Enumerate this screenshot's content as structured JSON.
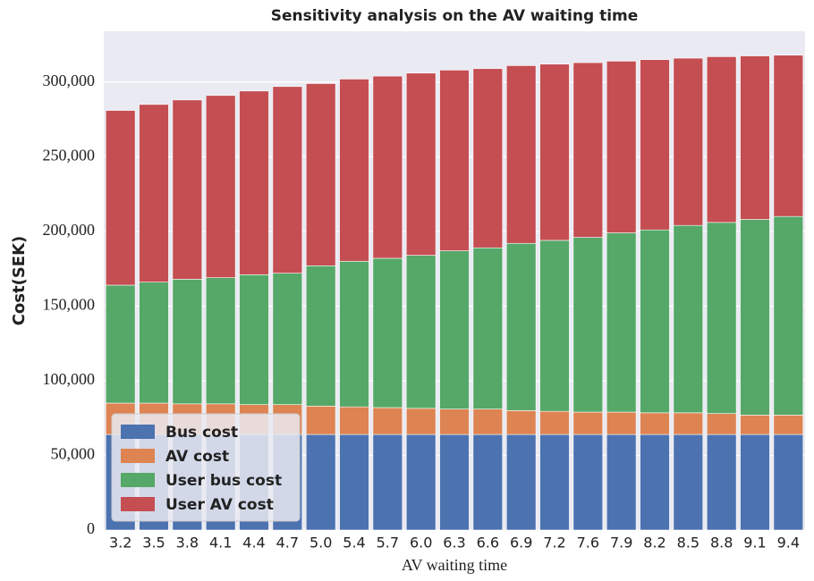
{
  "chart_data": {
    "type": "stacked_bar",
    "title": "Sensitivity analysis on the AV waiting time",
    "xlabel": "AV waiting time",
    "ylabel": "Cost(SEK)",
    "categories": [
      "3.2",
      "3.5",
      "3.8",
      "4.1",
      "4.4",
      "4.7",
      "5.0",
      "5.4",
      "5.7",
      "6.0",
      "6.3",
      "6.6",
      "6.9",
      "7.2",
      "7.6",
      "7.9",
      "8.2",
      "8.5",
      "8.8",
      "9.1",
      "9.4"
    ],
    "series": [
      {
        "name": "Bus cost",
        "color": "#4c72b0",
        "values": [
          64000,
          64000,
          64000,
          64000,
          64000,
          64000,
          64000,
          64000,
          64000,
          64000,
          64000,
          64000,
          64000,
          64000,
          64000,
          64000,
          64000,
          64000,
          64000,
          64000,
          64000
        ]
      },
      {
        "name": "AV cost",
        "color": "#dd8452",
        "values": [
          21000,
          21000,
          20500,
          20500,
          20000,
          20000,
          19000,
          18500,
          18000,
          17500,
          17000,
          17000,
          16000,
          15500,
          15000,
          15000,
          14500,
          14500,
          14000,
          13000,
          13000
        ]
      },
      {
        "name": "User bus cost",
        "color": "#55a868",
        "values": [
          79000,
          81000,
          83500,
          84500,
          87000,
          88000,
          94000,
          97500,
          100000,
          102500,
          106000,
          108000,
          112000,
          114500,
          117000,
          120000,
          122500,
          125500,
          128000,
          131000,
          133000
        ]
      },
      {
        "name": "User AV cost",
        "color": "#c44e52",
        "values": [
          117000,
          119000,
          120000,
          122000,
          123000,
          125000,
          122000,
          122000,
          122000,
          122000,
          121000,
          120000,
          119000,
          118000,
          117000,
          115000,
          114000,
          112000,
          111000,
          109500,
          108000
        ]
      }
    ],
    "ylim": [
      0,
      334000
    ],
    "yticks": [
      0,
      {
        "value": 50000,
        "label": "50,000"
      },
      {
        "value": 100000,
        "label": "100,000"
      },
      {
        "value": 150000,
        "label": "150,000"
      },
      {
        "value": 200000,
        "label": "200,000"
      },
      {
        "value": 250000,
        "label": "250,000"
      },
      {
        "value": 300000,
        "label": "300,000"
      }
    ],
    "grid": true,
    "legend": "lower left"
  }
}
